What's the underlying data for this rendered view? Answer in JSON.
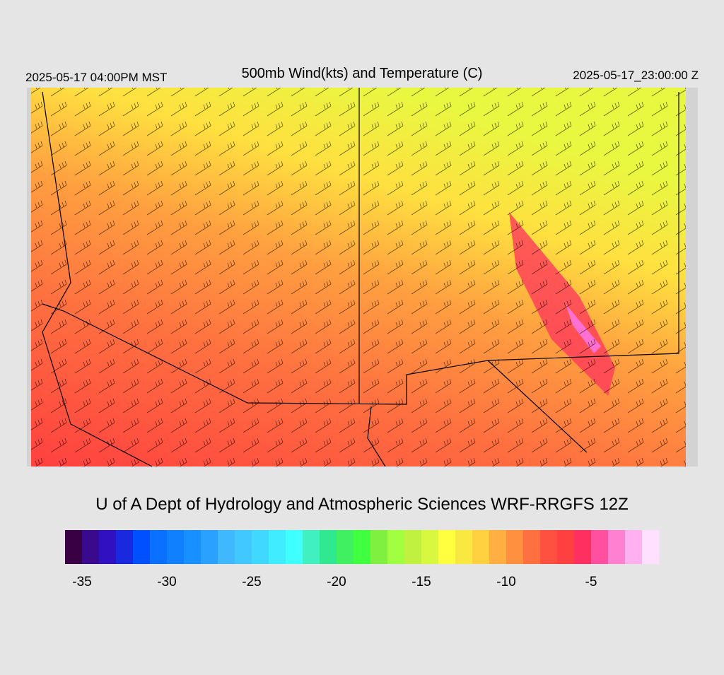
{
  "header": {
    "left": "2025-05-17 04:00PM MST",
    "title": "500mb Wind(kts) and Temperature (C)",
    "right": "2025-05-17_23:00:00 Z"
  },
  "credit": "U of A Dept of Hydrology and Atmospheric Sciences WRF-RRGFS 12Z",
  "colorbar": {
    "range": [
      -36,
      -1
    ],
    "ticks": [
      -35,
      -30,
      -25,
      -20,
      -15,
      -10,
      -5
    ],
    "colors": [
      "#3a0044",
      "#3a0a8c",
      "#3010c0",
      "#1a28e0",
      "#0050ff",
      "#0a70ff",
      "#1080ff",
      "#1890ff",
      "#2aa0ff",
      "#40b8ff",
      "#40c8ff",
      "#40d8ff",
      "#40ecff",
      "#40ffff",
      "#40f0c0",
      "#30e890",
      "#40f060",
      "#40ff40",
      "#80f040",
      "#a0ff40",
      "#c0f040",
      "#d8f840",
      "#ffff40",
      "#f8e840",
      "#ffd040",
      "#ffb040",
      "#ff9040",
      "#ff7040",
      "#ff5040",
      "#ff4040",
      "#ff3060",
      "#ff50a0",
      "#ff80d0",
      "#ffb0f0",
      "#ffe0ff"
    ]
  }
}
